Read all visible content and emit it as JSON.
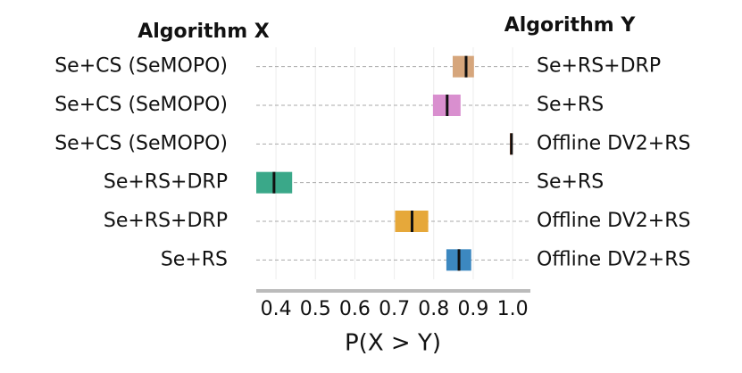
{
  "chart_data": {
    "type": "interval",
    "x_group_title": "Algorithm X",
    "y_group_title": "Algorithm Y",
    "xlabel": "P(X > Y)",
    "rows": [
      {
        "x_name": "Se+CS (SeMOPO)",
        "y_name": "Se+RS+DRP",
        "low": 0.848,
        "median": 0.882,
        "high": 0.902,
        "color": "#d6a67c"
      },
      {
        "x_name": "Se+CS (SeMOPO)",
        "y_name": "Se+RS",
        "low": 0.798,
        "median": 0.834,
        "high": 0.868,
        "color": "#d98fcf"
      },
      {
        "x_name": "Se+CS (SeMOPO)",
        "y_name": "Offline DV2+RS",
        "low": 0.993,
        "median": 0.997,
        "high": 1.0,
        "color": "#d9632f"
      },
      {
        "x_name": "Se+RS+DRP",
        "y_name": "Se+RS",
        "low": 0.35,
        "median": 0.395,
        "high": 0.441,
        "color": "#3aa889"
      },
      {
        "x_name": "Se+RS+DRP",
        "y_name": "Offline DV2+RS",
        "low": 0.702,
        "median": 0.745,
        "high": 0.786,
        "color": "#e6a83a"
      },
      {
        "x_name": "Se+RS",
        "y_name": "Offline DV2+RS",
        "low": 0.832,
        "median": 0.864,
        "high": 0.895,
        "color": "#3c88c0"
      }
    ],
    "xlim": [
      0.35,
      1.045
    ],
    "xticks": [
      0.4,
      0.5,
      0.6,
      0.7,
      0.8,
      0.9,
      {
        "value": 1.0,
        "label": "1.0"
      }
    ],
    "grid": true
  }
}
